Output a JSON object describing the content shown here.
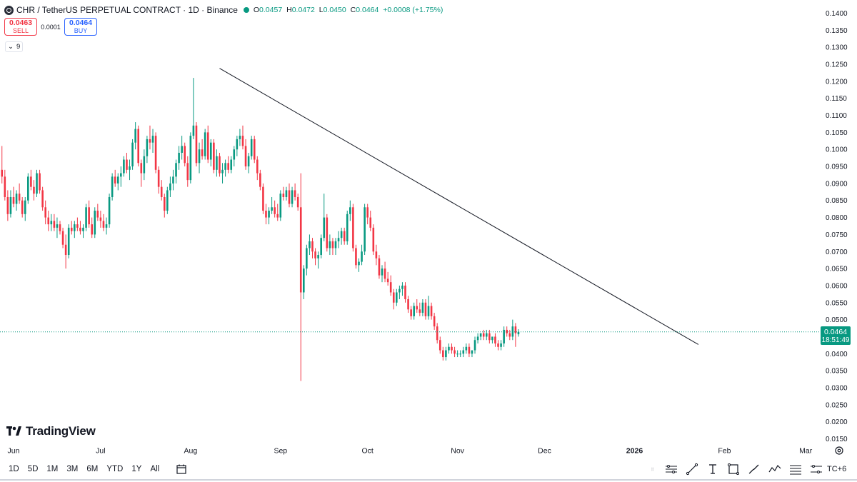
{
  "header": {
    "title": "CHR / TetherUS PERPETUAL CONTRACT · 1D · Binance",
    "ohlc": [
      {
        "key": "O",
        "value": "0.0457"
      },
      {
        "key": "H",
        "value": "0.0472"
      },
      {
        "key": "L",
        "value": "0.0450"
      },
      {
        "key": "C",
        "value": "0.0464"
      }
    ],
    "change": "+0.0008 (+1.75%)",
    "status_color": "#089981"
  },
  "trade": {
    "sell_price": "0.0463",
    "sell_label": "SELL",
    "spread": "0.0001",
    "buy_price": "0.0464",
    "buy_label": "BUY"
  },
  "indicators": {
    "toggle_count": "9"
  },
  "price_tag": {
    "price": "0.0464",
    "countdown": "18:51:49"
  },
  "brand": {
    "name": "TradingView"
  },
  "timeframes": [
    "1D",
    "5D",
    "1M",
    "3M",
    "6M",
    "YTD",
    "1Y",
    "All"
  ],
  "utc_label": "TC+6",
  "colors": {
    "up": "#089981",
    "down": "#f23645",
    "accent": "#2962ff"
  },
  "chart_data": {
    "type": "candlestick",
    "title": "CHR / TetherUS PERPETUAL CONTRACT · 1D · Binance",
    "y_ticks": [
      "0.1400",
      "0.1350",
      "0.1300",
      "0.1250",
      "0.1200",
      "0.1150",
      "0.1100",
      "0.1050",
      "0.1000",
      "0.0950",
      "0.0900",
      "0.0850",
      "0.0800",
      "0.0750",
      "0.0700",
      "0.0650",
      "0.0600",
      "0.0550",
      "0.0500",
      "0.0450",
      "0.0400",
      "0.0350",
      "0.0300",
      "0.0250",
      "0.0200",
      "0.0150"
    ],
    "ylim": [
      0.0145,
      0.1405
    ],
    "x_ticks": [
      {
        "label": "Jun",
        "day": 0
      },
      {
        "label": "Jul",
        "day": 30
      },
      {
        "label": "Aug",
        "day": 61
      },
      {
        "label": "Sep",
        "day": 92
      },
      {
        "label": "Oct",
        "day": 122
      },
      {
        "label": "Nov",
        "day": 153
      },
      {
        "label": "Dec",
        "day": 183
      },
      {
        "label": "2026",
        "day": 214
      },
      {
        "label": "Feb",
        "day": 245
      },
      {
        "label": "Mar",
        "day": 273
      }
    ],
    "last_price": 0.0464,
    "trendline": {
      "start": {
        "day": 71,
        "price": 0.1238
      },
      "end": {
        "day": 236,
        "price": 0.0427
      }
    },
    "candles": [
      [
        0.102,
        0.103,
        0.092,
        0.094
      ],
      [
        0.094,
        0.101,
        0.09,
        0.092
      ],
      [
        0.092,
        0.094,
        0.085,
        0.086
      ],
      [
        0.086,
        0.088,
        0.079,
        0.081
      ],
      [
        0.081,
        0.088,
        0.08,
        0.086
      ],
      [
        0.086,
        0.089,
        0.083,
        0.084
      ],
      [
        0.084,
        0.088,
        0.082,
        0.087
      ],
      [
        0.087,
        0.09,
        0.084,
        0.085
      ],
      [
        0.085,
        0.086,
        0.08,
        0.081
      ],
      [
        0.081,
        0.086,
        0.079,
        0.085
      ],
      [
        0.085,
        0.093,
        0.084,
        0.092
      ],
      [
        0.092,
        0.094,
        0.088,
        0.089
      ],
      [
        0.089,
        0.091,
        0.085,
        0.087
      ],
      [
        0.087,
        0.094,
        0.086,
        0.093
      ],
      [
        0.093,
        0.094,
        0.087,
        0.088
      ],
      [
        0.088,
        0.089,
        0.082,
        0.083
      ],
      [
        0.083,
        0.085,
        0.078,
        0.08
      ],
      [
        0.08,
        0.082,
        0.076,
        0.078
      ],
      [
        0.078,
        0.081,
        0.076,
        0.079
      ],
      [
        0.079,
        0.081,
        0.076,
        0.077
      ],
      [
        0.077,
        0.08,
        0.074,
        0.078
      ],
      [
        0.078,
        0.079,
        0.075,
        0.076
      ],
      [
        0.076,
        0.077,
        0.071,
        0.072
      ],
      [
        0.072,
        0.075,
        0.065,
        0.069
      ],
      [
        0.069,
        0.078,
        0.068,
        0.077
      ],
      [
        0.077,
        0.079,
        0.075,
        0.076
      ],
      [
        0.076,
        0.079,
        0.074,
        0.078
      ],
      [
        0.078,
        0.08,
        0.076,
        0.077
      ],
      [
        0.077,
        0.079,
        0.075,
        0.076
      ],
      [
        0.076,
        0.078,
        0.074,
        0.077
      ],
      [
        0.077,
        0.084,
        0.076,
        0.083
      ],
      [
        0.083,
        0.085,
        0.077,
        0.078
      ],
      [
        0.078,
        0.08,
        0.074,
        0.075
      ],
      [
        0.075,
        0.083,
        0.074,
        0.082
      ],
      [
        0.082,
        0.084,
        0.079,
        0.08
      ],
      [
        0.08,
        0.082,
        0.077,
        0.079
      ],
      [
        0.079,
        0.081,
        0.076,
        0.077
      ],
      [
        0.077,
        0.08,
        0.075,
        0.078
      ],
      [
        0.078,
        0.087,
        0.077,
        0.086
      ],
      [
        0.086,
        0.093,
        0.085,
        0.092
      ],
      [
        0.092,
        0.094,
        0.089,
        0.09
      ],
      [
        0.09,
        0.093,
        0.088,
        0.092
      ],
      [
        0.092,
        0.095,
        0.089,
        0.093
      ],
      [
        0.093,
        0.098,
        0.092,
        0.097
      ],
      [
        0.097,
        0.099,
        0.093,
        0.094
      ],
      [
        0.094,
        0.097,
        0.091,
        0.095
      ],
      [
        0.095,
        0.103,
        0.094,
        0.102
      ],
      [
        0.102,
        0.108,
        0.1,
        0.106
      ],
      [
        0.106,
        0.107,
        0.095,
        0.096
      ],
      [
        0.096,
        0.097,
        0.089,
        0.093
      ],
      [
        0.093,
        0.1,
        0.091,
        0.098
      ],
      [
        0.098,
        0.104,
        0.096,
        0.103
      ],
      [
        0.103,
        0.107,
        0.1,
        0.102
      ],
      [
        0.102,
        0.106,
        0.099,
        0.104
      ],
      [
        0.104,
        0.105,
        0.093,
        0.094
      ],
      [
        0.094,
        0.095,
        0.087,
        0.089
      ],
      [
        0.089,
        0.091,
        0.085,
        0.086
      ],
      [
        0.086,
        0.087,
        0.08,
        0.082
      ],
      [
        0.082,
        0.089,
        0.081,
        0.088
      ],
      [
        0.088,
        0.092,
        0.086,
        0.09
      ],
      [
        0.09,
        0.094,
        0.088,
        0.092
      ],
      [
        0.092,
        0.097,
        0.09,
        0.096
      ],
      [
        0.096,
        0.101,
        0.094,
        0.099
      ],
      [
        0.099,
        0.104,
        0.097,
        0.101
      ],
      [
        0.101,
        0.102,
        0.095,
        0.096
      ],
      [
        0.096,
        0.098,
        0.089,
        0.091
      ],
      [
        0.091,
        0.105,
        0.09,
        0.104
      ],
      [
        0.104,
        0.121,
        0.103,
        0.107
      ],
      [
        0.107,
        0.108,
        0.095,
        0.096
      ],
      [
        0.096,
        0.102,
        0.093,
        0.1
      ],
      [
        0.1,
        0.103,
        0.097,
        0.098
      ],
      [
        0.098,
        0.106,
        0.097,
        0.105
      ],
      [
        0.105,
        0.107,
        0.096,
        0.097
      ],
      [
        0.097,
        0.103,
        0.095,
        0.102
      ],
      [
        0.102,
        0.103,
        0.093,
        0.094
      ],
      [
        0.094,
        0.1,
        0.092,
        0.098
      ],
      [
        0.098,
        0.099,
        0.092,
        0.093
      ],
      [
        0.093,
        0.096,
        0.09,
        0.094
      ],
      [
        0.094,
        0.097,
        0.092,
        0.096
      ],
      [
        0.096,
        0.098,
        0.093,
        0.094
      ],
      [
        0.094,
        0.098,
        0.093,
        0.097
      ],
      [
        0.097,
        0.101,
        0.095,
        0.1
      ],
      [
        0.1,
        0.104,
        0.098,
        0.103
      ],
      [
        0.103,
        0.106,
        0.101,
        0.104
      ],
      [
        0.104,
        0.107,
        0.1,
        0.101
      ],
      [
        0.101,
        0.103,
        0.094,
        0.095
      ],
      [
        0.095,
        0.099,
        0.093,
        0.098
      ],
      [
        0.098,
        0.104,
        0.097,
        0.103
      ],
      [
        0.103,
        0.104,
        0.096,
        0.097
      ],
      [
        0.097,
        0.098,
        0.091,
        0.093
      ],
      [
        0.093,
        0.094,
        0.088,
        0.089
      ],
      [
        0.089,
        0.09,
        0.081,
        0.082
      ],
      [
        0.082,
        0.084,
        0.078,
        0.08
      ],
      [
        0.08,
        0.083,
        0.078,
        0.082
      ],
      [
        0.082,
        0.086,
        0.081,
        0.083
      ],
      [
        0.083,
        0.085,
        0.08,
        0.081
      ],
      [
        0.081,
        0.084,
        0.079,
        0.08
      ],
      [
        0.08,
        0.088,
        0.079,
        0.087
      ],
      [
        0.087,
        0.089,
        0.085,
        0.086
      ],
      [
        0.086,
        0.089,
        0.085,
        0.088
      ],
      [
        0.088,
        0.09,
        0.083,
        0.084
      ],
      [
        0.084,
        0.089,
        0.083,
        0.088
      ],
      [
        0.088,
        0.09,
        0.085,
        0.086
      ],
      [
        0.086,
        0.087,
        0.082,
        0.083
      ],
      [
        0.083,
        0.093,
        0.032,
        0.058
      ],
      [
        0.058,
        0.066,
        0.056,
        0.065
      ],
      [
        0.065,
        0.072,
        0.063,
        0.071
      ],
      [
        0.071,
        0.075,
        0.069,
        0.073
      ],
      [
        0.073,
        0.074,
        0.068,
        0.07
      ],
      [
        0.07,
        0.071,
        0.066,
        0.068
      ],
      [
        0.068,
        0.07,
        0.065,
        0.069
      ],
      [
        0.069,
        0.075,
        0.068,
        0.074
      ],
      [
        0.074,
        0.087,
        0.073,
        0.08
      ],
      [
        0.08,
        0.081,
        0.07,
        0.071
      ],
      [
        0.071,
        0.075,
        0.069,
        0.073
      ],
      [
        0.073,
        0.074,
        0.069,
        0.071
      ],
      [
        0.071,
        0.074,
        0.069,
        0.073
      ],
      [
        0.073,
        0.076,
        0.071,
        0.074
      ],
      [
        0.074,
        0.077,
        0.072,
        0.076
      ],
      [
        0.076,
        0.077,
        0.072,
        0.073
      ],
      [
        0.073,
        0.082,
        0.072,
        0.081
      ],
      [
        0.081,
        0.085,
        0.079,
        0.083
      ],
      [
        0.083,
        0.084,
        0.07,
        0.071
      ],
      [
        0.071,
        0.072,
        0.065,
        0.066
      ],
      [
        0.066,
        0.068,
        0.064,
        0.067
      ],
      [
        0.067,
        0.072,
        0.066,
        0.07
      ],
      [
        0.07,
        0.084,
        0.069,
        0.083
      ],
      [
        0.083,
        0.084,
        0.078,
        0.08
      ],
      [
        0.08,
        0.082,
        0.076,
        0.077
      ],
      [
        0.077,
        0.078,
        0.069,
        0.07
      ],
      [
        0.07,
        0.072,
        0.066,
        0.068
      ],
      [
        0.068,
        0.069,
        0.062,
        0.063
      ],
      [
        0.063,
        0.066,
        0.061,
        0.065
      ],
      [
        0.065,
        0.067,
        0.061,
        0.062
      ],
      [
        0.062,
        0.064,
        0.06,
        0.061
      ],
      [
        0.061,
        0.063,
        0.057,
        0.058
      ],
      [
        0.058,
        0.059,
        0.053,
        0.055
      ],
      [
        0.055,
        0.059,
        0.054,
        0.058
      ],
      [
        0.058,
        0.06,
        0.056,
        0.059
      ],
      [
        0.059,
        0.061,
        0.057,
        0.06
      ],
      [
        0.06,
        0.061,
        0.055,
        0.056
      ],
      [
        0.056,
        0.057,
        0.052,
        0.053
      ],
      [
        0.053,
        0.054,
        0.05,
        0.051
      ],
      [
        0.051,
        0.055,
        0.05,
        0.054
      ],
      [
        0.054,
        0.056,
        0.052,
        0.053
      ],
      [
        0.053,
        0.055,
        0.051,
        0.052
      ],
      [
        0.052,
        0.056,
        0.051,
        0.055
      ],
      [
        0.055,
        0.056,
        0.05,
        0.051
      ],
      [
        0.051,
        0.057,
        0.05,
        0.054
      ],
      [
        0.054,
        0.055,
        0.05,
        0.051
      ],
      [
        0.051,
        0.052,
        0.047,
        0.048
      ],
      [
        0.048,
        0.049,
        0.043,
        0.044
      ],
      [
        0.044,
        0.045,
        0.04,
        0.041
      ],
      [
        0.041,
        0.042,
        0.038,
        0.039
      ],
      [
        0.039,
        0.042,
        0.038,
        0.041
      ],
      [
        0.041,
        0.043,
        0.04,
        0.042
      ],
      [
        0.042,
        0.043,
        0.04,
        0.041
      ],
      [
        0.041,
        0.042,
        0.039,
        0.04
      ],
      [
        0.04,
        0.041,
        0.039,
        0.04
      ],
      [
        0.04,
        0.041,
        0.039,
        0.04
      ],
      [
        0.04,
        0.042,
        0.039,
        0.041
      ],
      [
        0.041,
        0.043,
        0.04,
        0.042
      ],
      [
        0.042,
        0.043,
        0.039,
        0.04
      ],
      [
        0.04,
        0.041,
        0.039,
        0.041
      ],
      [
        0.041,
        0.045,
        0.04,
        0.044
      ],
      [
        0.044,
        0.046,
        0.043,
        0.045
      ],
      [
        0.045,
        0.046,
        0.044,
        0.046
      ],
      [
        0.046,
        0.047,
        0.044,
        0.045
      ],
      [
        0.045,
        0.047,
        0.044,
        0.046
      ],
      [
        0.046,
        0.047,
        0.043,
        0.044
      ],
      [
        0.044,
        0.045,
        0.043,
        0.045
      ],
      [
        0.045,
        0.046,
        0.042,
        0.043
      ],
      [
        0.043,
        0.044,
        0.041,
        0.042
      ],
      [
        0.042,
        0.044,
        0.041,
        0.043
      ],
      [
        0.043,
        0.048,
        0.042,
        0.047
      ],
      [
        0.047,
        0.048,
        0.045,
        0.046
      ],
      [
        0.046,
        0.047,
        0.044,
        0.045
      ],
      [
        0.045,
        0.05,
        0.044,
        0.048
      ],
      [
        0.048,
        0.049,
        0.042,
        0.046
      ],
      [
        0.0457,
        0.0472,
        0.045,
        0.0464
      ]
    ]
  }
}
